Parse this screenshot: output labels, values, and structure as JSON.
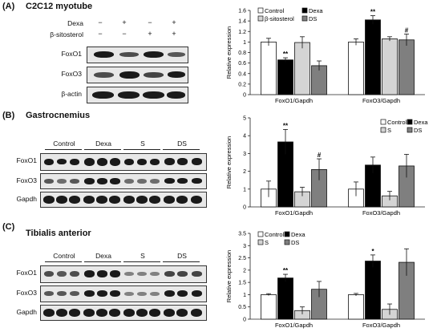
{
  "panels": [
    {
      "label": "(A)",
      "title": "C2C12 myotube"
    },
    {
      "label": "(B)",
      "title": "Gastrocnemius"
    },
    {
      "label": "(C)",
      "title": "Tibialis anterior"
    }
  ],
  "blot_a": {
    "treatments": [
      {
        "name": "Dexa",
        "signs": [
          "−",
          "+",
          "−",
          "+"
        ]
      },
      {
        "name": "β-sitosterol",
        "signs": [
          "−",
          "−",
          "+",
          "+"
        ]
      }
    ],
    "bands": [
      "FoxO1",
      "FoxO3",
      "β-actin"
    ]
  },
  "blot_b": {
    "groups": [
      "Control",
      "Dexa",
      "S",
      "DS"
    ],
    "bands": [
      "FoxO1",
      "FoxO3",
      "Gapdh"
    ]
  },
  "blot_c": {
    "groups": [
      "Control",
      "Dexa",
      "S",
      "DS"
    ],
    "bands": [
      "FoxO1",
      "FoxO3",
      "Gapdh"
    ]
  },
  "colors": {
    "control": "#ffffff",
    "dexa": "#000000",
    "s": "#d4d4d4",
    "ds": "#7f7f7f"
  },
  "chart_data": [
    {
      "type": "bar",
      "ylabel": "Relative expression",
      "ylim": [
        0,
        1.6
      ],
      "yticks": [
        "0",
        "0.2",
        "0.4",
        "0.6",
        "0.8",
        "1",
        "1.2",
        "1.4",
        "1.6"
      ],
      "categories": [
        "FoxO1/Gapdh",
        "FoxO3/Gapdh"
      ],
      "legend": "top-left",
      "series": [
        {
          "name": "Control",
          "values": [
            1.0,
            1.0
          ],
          "errors": [
            0.07,
            0.06
          ],
          "sig": [
            "",
            ""
          ]
        },
        {
          "name": "Dexa",
          "values": [
            0.66,
            1.42
          ],
          "errors": [
            0.04,
            0.08
          ],
          "sig": [
            "**",
            "**"
          ]
        },
        {
          "name": "β-sitosterol",
          "values": [
            0.99,
            1.06
          ],
          "errors": [
            0.11,
            0.04
          ],
          "sig": [
            "",
            ""
          ]
        },
        {
          "name": "DS",
          "values": [
            0.55,
            1.04
          ],
          "errors": [
            0.09,
            0.11
          ],
          "sig": [
            "",
            "#"
          ]
        }
      ]
    },
    {
      "type": "bar",
      "ylabel": "Relative expression",
      "ylim": [
        0,
        5
      ],
      "yticks": [
        "0",
        "1",
        "2",
        "3",
        "4",
        "5"
      ],
      "categories": [
        "FoxO1/Gapdh",
        "FoxO3/Gapdh"
      ],
      "legend": "top-right",
      "series": [
        {
          "name": "Control",
          "values": [
            1.0,
            1.0
          ],
          "errors": [
            0.45,
            0.4
          ],
          "sig": [
            "",
            ""
          ]
        },
        {
          "name": "Dexa",
          "values": [
            3.65,
            2.35
          ],
          "errors": [
            0.7,
            0.45
          ],
          "sig": [
            "**",
            ""
          ]
        },
        {
          "name": "S",
          "values": [
            0.85,
            0.62
          ],
          "errors": [
            0.25,
            0.25
          ],
          "sig": [
            "",
            ""
          ]
        },
        {
          "name": "DS",
          "values": [
            2.1,
            2.3
          ],
          "errors": [
            0.6,
            0.65
          ],
          "sig": [
            "#",
            ""
          ]
        }
      ]
    },
    {
      "type": "bar",
      "ylabel": "Relative expression",
      "ylim": [
        0,
        3.5
      ],
      "yticks": [
        "0",
        "0.5",
        "1",
        "1.5",
        "2",
        "2.5",
        "3",
        "3.5"
      ],
      "categories": [
        "FoxO1/Gapdh",
        "FoxO3/Gapdh"
      ],
      "legend": "top-left",
      "series": [
        {
          "name": "Control",
          "values": [
            1.0,
            1.0
          ],
          "errors": [
            0.04,
            0.05
          ],
          "sig": [
            "",
            ""
          ]
        },
        {
          "name": "Dexa",
          "values": [
            1.68,
            2.37
          ],
          "errors": [
            0.15,
            0.25
          ],
          "sig": [
            "**",
            "*"
          ]
        },
        {
          "name": "S",
          "values": [
            0.35,
            0.4
          ],
          "errors": [
            0.15,
            0.22
          ],
          "sig": [
            "",
            ""
          ]
        },
        {
          "name": "DS",
          "values": [
            1.22,
            2.32
          ],
          "errors": [
            0.32,
            0.55
          ],
          "sig": [
            "",
            ""
          ]
        }
      ]
    }
  ]
}
